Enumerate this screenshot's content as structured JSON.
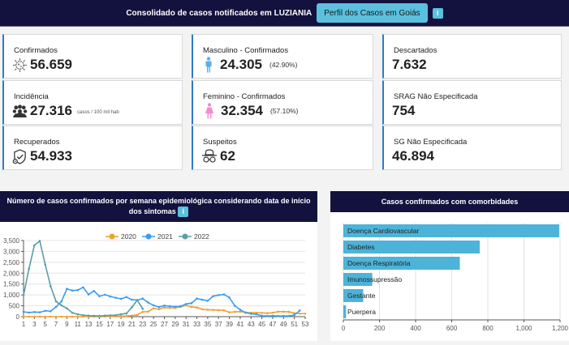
{
  "header": {
    "title_prefix": "Consolidado de casos notificados em ",
    "city": "LUZIANIA",
    "profile_button": "Perfil dos Casos em Goiás",
    "info_label": "i"
  },
  "cards": {
    "confirmados": {
      "label": "Confirmados",
      "value": "56.659",
      "icon": "virus-icon"
    },
    "incidencia": {
      "label": "Incidência",
      "value": "27.316",
      "unit": "casos / 100 mil hab",
      "icon": "crowd-icon"
    },
    "recuperados": {
      "label": "Recuperados",
      "value": "54.933",
      "icon": "shield-check-icon"
    },
    "masculino": {
      "label": "Masculino - Confirmados",
      "value": "24.305",
      "pct": "(42.90%)",
      "icon": "male-icon"
    },
    "feminino": {
      "label": "Feminino - Confirmados",
      "value": "32.354",
      "pct": "(57.10%)",
      "icon": "female-icon"
    },
    "suspeitos": {
      "label": "Suspeitos",
      "value": "62",
      "icon": "spy-icon"
    },
    "descartados": {
      "label": "Descartados",
      "value": "7.632"
    },
    "srag": {
      "label": "SRAG Não Especificada",
      "value": "754"
    },
    "sg": {
      "label": "SG Não Especificada",
      "value": "46.894"
    }
  },
  "colors": {
    "header_bg": "#13113d",
    "accent": "#5bc0de",
    "card_border": "#2f7bc4",
    "male": "#5aaef0",
    "female": "#f28bd0",
    "series_2020": "#f0a030",
    "series_2021": "#3a9cf5",
    "series_2022": "#5a9ea6",
    "bar": "#4db3d9"
  },
  "chart_data": [
    {
      "type": "line",
      "title": "Número de casos confirmados por semana epidemiológica considerando data de início dos sintomas",
      "info_label": "i",
      "xlabel": "",
      "ylabel": "",
      "ylim": [
        0,
        3500
      ],
      "yticks": [
        0,
        500,
        1000,
        1500,
        2000,
        2500,
        3000,
        3500
      ],
      "ytick_labels": [
        "0",
        "500",
        "1,000",
        "1,500",
        "2,000",
        "2,500",
        "3,000",
        "3,500"
      ],
      "xticks": [
        1,
        3,
        5,
        7,
        9,
        11,
        13,
        15,
        17,
        19,
        21,
        23,
        25,
        27,
        29,
        31,
        33,
        35,
        37,
        39,
        41,
        43,
        45,
        47,
        49,
        51,
        53
      ],
      "xlim": [
        1,
        53
      ],
      "legend_position": "top-center",
      "grid": true,
      "series": [
        {
          "name": "2020",
          "x": [
            1,
            2,
            3,
            4,
            5,
            6,
            7,
            8,
            9,
            10,
            11,
            12,
            13,
            14,
            15,
            16,
            17,
            18,
            19,
            20,
            21,
            22,
            23,
            24,
            25,
            26,
            27,
            28,
            29,
            30,
            31,
            32,
            33,
            34,
            35,
            36,
            37,
            38,
            39,
            40,
            41,
            42,
            43,
            44,
            45,
            46,
            47,
            48,
            49,
            50,
            51,
            52,
            53
          ],
          "values": [
            0,
            0,
            0,
            0,
            0,
            0,
            0,
            0,
            0,
            0,
            0,
            0,
            0,
            0,
            0,
            5,
            10,
            15,
            20,
            30,
            50,
            80,
            220,
            230,
            380,
            340,
            420,
            400,
            400,
            450,
            520,
            450,
            420,
            340,
            320,
            310,
            300,
            290,
            200,
            220,
            230,
            200,
            180,
            180,
            170,
            160,
            180,
            230,
            230,
            220,
            160,
            140,
            140
          ]
        },
        {
          "name": "2021",
          "x": [
            1,
            2,
            3,
            4,
            5,
            6,
            7,
            8,
            9,
            10,
            11,
            12,
            13,
            14,
            15,
            16,
            17,
            18,
            19,
            20,
            21,
            22,
            23,
            24,
            25,
            26,
            27,
            28,
            29,
            30,
            31,
            32,
            33,
            34,
            35,
            36,
            37,
            38,
            39,
            40,
            41,
            42,
            43,
            44,
            45,
            46,
            47,
            48,
            49,
            50,
            51,
            52
          ],
          "values": [
            220,
            190,
            210,
            200,
            270,
            250,
            450,
            700,
            1280,
            1200,
            1220,
            1350,
            1020,
            1180,
            940,
            1010,
            930,
            870,
            820,
            900,
            780,
            760,
            830,
            650,
            520,
            440,
            510,
            480,
            460,
            480,
            580,
            620,
            830,
            780,
            730,
            940,
            990,
            1020,
            880,
            500,
            320,
            180,
            130,
            110,
            40,
            30,
            40,
            30,
            30,
            30,
            80,
            280
          ]
        },
        {
          "name": "2022",
          "x": [
            1,
            2,
            3,
            4,
            5,
            6,
            7,
            8,
            9,
            10,
            11,
            12,
            13,
            14,
            15,
            16,
            17,
            18,
            19,
            20,
            21,
            22,
            23
          ],
          "values": [
            980,
            2200,
            3280,
            3480,
            2400,
            1400,
            700,
            520,
            380,
            180,
            110,
            70,
            50,
            40,
            30,
            50,
            60,
            70,
            110,
            150,
            430,
            760,
            360
          ]
        }
      ]
    },
    {
      "type": "bar",
      "orientation": "horizontal",
      "title": "Casos confirmados com comorbidades",
      "categories": [
        "Doença Cardiovascular",
        "Diabetes",
        "Doença Respiratória",
        "Imunossupressão",
        "Gestante",
        "Puerpera"
      ],
      "values": [
        1195,
        755,
        645,
        160,
        110,
        15
      ],
      "xlim": [
        0,
        1200
      ],
      "xticks": [
        0,
        200,
        400,
        600,
        800,
        1000,
        1200
      ],
      "xtick_labels": [
        "0",
        "200",
        "400",
        "600",
        "800",
        "1,000",
        "1,200"
      ],
      "grid": true
    }
  ]
}
